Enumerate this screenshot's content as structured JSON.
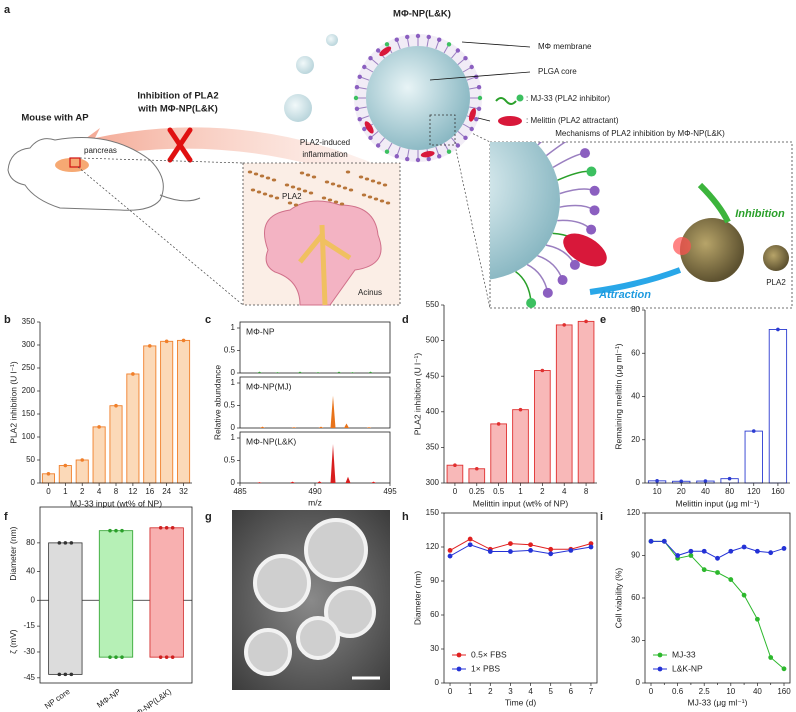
{
  "figure_label": "a",
  "schematic": {
    "np_title": "MΦ-NP(L&K)",
    "membrane": "MΦ membrane",
    "core": "PLGA core",
    "mj33": ": MJ-33 (PLA2 inhibitor)",
    "melittin": ": Melittin (PLA2 attractant)",
    "inhibition_title": [
      "Inhibition of PLA2",
      "with MΦ-NP(L&K)"
    ],
    "mouse": "Mouse with AP",
    "pancreas": "pancreas",
    "inflammation_title": [
      "PLA2-induced",
      "inflammation"
    ],
    "pla2_left": "PLA2",
    "acinus": "Acinus",
    "mechanism_title": "Mechanisms of PLA2 inhibition by MΦ-NP(L&K)",
    "inhibition": "Inhibition",
    "attraction": "Attraction",
    "pla2_right": "PLA2"
  },
  "chart_data": [
    {
      "panel": "b",
      "type": "bar",
      "categories": [
        "0",
        "1",
        "2",
        "4",
        "8",
        "12",
        "16",
        "24",
        "32"
      ],
      "values": [
        20,
        38,
        50,
        122,
        168,
        237,
        298,
        308,
        310
      ],
      "color": "#fbd9b8",
      "edge_color": "#f07f2a",
      "ylim": [
        0,
        350
      ],
      "yticks": [
        0,
        50,
        100,
        150,
        200,
        250,
        300,
        350
      ],
      "xlabel": "MJ-33 input (wt% of NP)",
      "ylabel": "PLA2 inhibition (U l⁻¹)"
    },
    {
      "panel": "c",
      "type": "spectrum",
      "xlim": [
        485,
        495
      ],
      "xticks": [
        485,
        490,
        495
      ],
      "ylim": [
        0,
        1
      ],
      "yticks": [
        0,
        0.5,
        1
      ],
      "xlabel": "m/z",
      "ylabel": "Relative abundance",
      "series": [
        {
          "name": "MΦ-NP",
          "color": "#3a9a3a",
          "x": [
            486.3,
            487.5,
            489.0,
            490.2,
            491.6,
            492.5,
            493.7
          ],
          "values": [
            0.03,
            0.02,
            0.03,
            0.02,
            0.03,
            0.02,
            0.03
          ]
        },
        {
          "name": "MΦ-NP(MJ)",
          "color": "#e8731a",
          "x": [
            486.5,
            488.6,
            490.4,
            491.2,
            492.1,
            493.6
          ],
          "values": [
            0.03,
            0.02,
            0.03,
            0.72,
            0.1,
            0.02
          ]
        },
        {
          "name": "MΦ-NP(L&K)",
          "color": "#d81e1e",
          "x": [
            486.3,
            488.5,
            490.3,
            491.2,
            492.2,
            493.9
          ],
          "values": [
            0.02,
            0.03,
            0.04,
            0.86,
            0.14,
            0.03
          ]
        }
      ]
    },
    {
      "panel": "d",
      "type": "bar",
      "categories": [
        "0",
        "0.25",
        "0.5",
        "1",
        "2",
        "4",
        "8"
      ],
      "values": [
        325,
        320,
        383,
        403,
        458,
        522,
        527
      ],
      "color": "#f8b8b8",
      "edge_color": "#e03030",
      "ylim": [
        300,
        550
      ],
      "yticks": [
        300,
        350,
        400,
        450,
        500,
        550
      ],
      "xlabel": "Melittin input (wt% of NP)",
      "ylabel": "PLA2 inhibition (U l⁻¹)"
    },
    {
      "panel": "e",
      "type": "bar",
      "categories": [
        "10",
        "20",
        "40",
        "80",
        "120",
        "160"
      ],
      "values": [
        1,
        0.8,
        0.9,
        2,
        24,
        71
      ],
      "color": "#ffffff",
      "edge_color": "#2b3bd1",
      "ylim": [
        0,
        80
      ],
      "yticks": [
        0,
        20,
        40,
        60,
        80
      ],
      "xlabel": "Melittin input (μg ml⁻¹)",
      "ylabel": "Remaining melittin (μg ml⁻¹)"
    },
    {
      "panel": "f",
      "type": "floating_bar",
      "categories": [
        "NP core",
        "MΦ-NP",
        "MΦ-NP(L&K)"
      ],
      "colors": [
        "#dcdcdc",
        "#b6f0b6",
        "#f8b0b0"
      ],
      "edge_colors": [
        "#333333",
        "#2aa02a",
        "#d02020"
      ],
      "series": [
        {
          "values": [
            80,
            97,
            101
          ]
        },
        {
          "axis": "y2",
          "values": [
            -43,
            -33,
            -33
          ]
        }
      ],
      "ylim": [
        0,
        130
      ],
      "yticks": [
        0,
        40,
        80
      ],
      "y2lim": [
        -48,
        0
      ],
      "y2ticks": [
        -15,
        -30,
        -45
      ],
      "ylabel": "Diameter (nm)",
      "y2label": "ζ (mV)"
    },
    {
      "panel": "h",
      "type": "line",
      "x": [
        0,
        1,
        2,
        3,
        4,
        5,
        6,
        7
      ],
      "xlim": [
        -0.3,
        7.3
      ],
      "xticks": [
        0,
        1,
        2,
        3,
        4,
        5,
        6,
        7
      ],
      "ylim": [
        0,
        150
      ],
      "yticks": [
        0,
        30,
        60,
        90,
        120,
        150
      ],
      "xlabel": "Time (d)",
      "ylabel": "Diameter (nm)",
      "legend": "lower left",
      "series": [
        {
          "name": "0.5× FBS",
          "color": "#e02020",
          "values": [
            117,
            127,
            118,
            123,
            122,
            118,
            118,
            123
          ]
        },
        {
          "name": "1× PBS",
          "color": "#2432d6",
          "values": [
            112,
            122,
            116,
            116,
            117,
            114,
            117,
            120
          ]
        }
      ]
    },
    {
      "panel": "i",
      "type": "line",
      "categories": [
        "0",
        null,
        "0.6",
        null,
        "2.5",
        null,
        "10",
        null,
        "40",
        null,
        "160"
      ],
      "ylim": [
        0,
        120
      ],
      "yticks": [
        0,
        30,
        60,
        90,
        120
      ],
      "xlabel": "MJ-33 (μg ml⁻¹)",
      "ylabel": "Cell viability (%)",
      "legend": "lower left",
      "series": [
        {
          "name": "MJ-33",
          "color": "#2db82d",
          "values": [
            100,
            100,
            88,
            90,
            80,
            78,
            73,
            62,
            45,
            18,
            10
          ]
        },
        {
          "name": "L&K-NP",
          "color": "#2432d6",
          "values": [
            100,
            100,
            90,
            93,
            93,
            88,
            93,
            96,
            93,
            92,
            95
          ]
        }
      ]
    }
  ],
  "image_panel": {
    "panel": "g"
  }
}
